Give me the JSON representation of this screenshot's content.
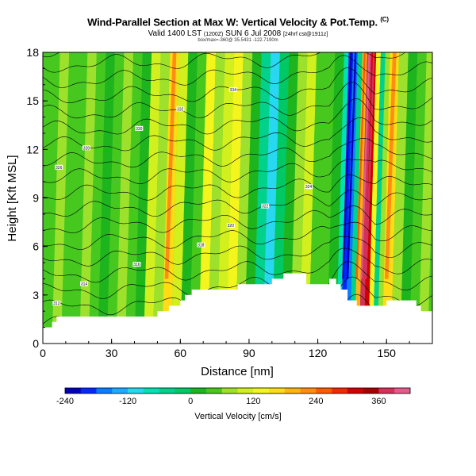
{
  "header": {
    "title": "Wind-Parallel Section at Max W: Vertical Velocity & Pot.Temp.",
    "copyright": "(C)",
    "valid_text": "Valid 1400 LST",
    "valid_paren": "(1200Z)",
    "valid_date": "SUN 6 Jul 2008",
    "forecast_text": "[24hrf cst@1911z]",
    "info_line": "box/max=-360@ 35.5431 -122.7190m"
  },
  "chart_data": {
    "type": "heatmap",
    "title": "Wind-Parallel Section at Max W: Vertical Velocity & Pot.Temp.",
    "xlabel": "Distance [nm]",
    "ylabel": "Height [Kft MSL]",
    "xlim": [
      0,
      170
    ],
    "ylim": [
      0,
      18
    ],
    "xticks": [
      0,
      30,
      60,
      90,
      120,
      150
    ],
    "yticks": [
      0,
      3,
      6,
      9,
      12,
      15,
      18
    ],
    "xtick_labels": [
      "0",
      "30",
      "60",
      "90",
      "120",
      "150"
    ],
    "ytick_labels": [
      "0",
      "3",
      "6",
      "9",
      "12",
      "15",
      "18"
    ],
    "colorbar": {
      "label": "Vertical Velocity [cm/s]",
      "min": -240,
      "max": 420,
      "step": 30,
      "tick_labels": [
        "-240",
        "-120",
        "0",
        "120",
        "240",
        "360"
      ],
      "tick_values": [
        -240,
        -120,
        0,
        120,
        240,
        360
      ],
      "colors": [
        "#0000b4",
        "#0028ff",
        "#0a7dff",
        "#1eaaff",
        "#28d7f0",
        "#00e1b4",
        "#00d28c",
        "#00c864",
        "#1eb41e",
        "#46c81e",
        "#9ee12d",
        "#d2f01e",
        "#f5f51e",
        "#ffdc14",
        "#ffb414",
        "#ff8c14",
        "#ff5a00",
        "#f52800",
        "#d20000",
        "#a50000",
        "#d2325a",
        "#e65a8c"
      ]
    },
    "terrain": {
      "x": [
        0,
        2,
        4,
        6,
        8,
        10,
        15,
        20,
        25,
        30,
        35,
        40,
        45,
        50,
        55,
        58,
        60,
        62,
        65,
        70,
        75,
        80,
        85,
        90,
        95,
        100,
        105,
        110,
        115,
        120,
        125,
        128,
        130,
        133,
        137,
        140,
        145,
        150,
        155,
        160,
        163,
        165,
        170
      ],
      "height_kft": [
        0.9,
        1.1,
        1.4,
        1.6,
        1.7,
        1.8,
        1.8,
        1.8,
        1.8,
        1.8,
        1.7,
        1.6,
        1.7,
        2.0,
        2.2,
        2.3,
        2.6,
        3.0,
        3.3,
        3.4,
        3.3,
        3.4,
        3.6,
        3.7,
        3.7,
        4.0,
        4.4,
        4.3,
        3.8,
        3.8,
        3.9,
        3.5,
        3.2,
        2.8,
        2.4,
        2.4,
        2.4,
        2.5,
        2.6,
        2.5,
        2.3,
        2.0,
        1.8
      ]
    },
    "velocity_columns": {
      "x": [
        0,
        4,
        8,
        12,
        16,
        20,
        24,
        28,
        32,
        36,
        40,
        44,
        48,
        52,
        56,
        60,
        64,
        68,
        72,
        76,
        80,
        84,
        88,
        92,
        96,
        100,
        104,
        108,
        112,
        116,
        120,
        124,
        128,
        130,
        132,
        134,
        136,
        138,
        140,
        142,
        144,
        146,
        148,
        152,
        156,
        160,
        164,
        168
      ],
      "w_cm_s": [
        40,
        60,
        30,
        50,
        70,
        40,
        20,
        50,
        80,
        30,
        20,
        100,
        60,
        150,
        90,
        20,
        40,
        120,
        60,
        100,
        140,
        80,
        20,
        -60,
        -100,
        -30,
        20,
        60,
        90,
        40,
        30,
        20,
        -80,
        -200,
        -160,
        -40,
        180,
        380,
        300,
        120,
        -40,
        80,
        160,
        60,
        20,
        40,
        60,
        30
      ]
    },
    "isentropes": {
      "count": 18,
      "contour_labels": [
        "312",
        "314",
        "316",
        "318",
        "320",
        "322",
        "324",
        "326",
        "328",
        "330",
        "332",
        "334"
      ]
    }
  }
}
